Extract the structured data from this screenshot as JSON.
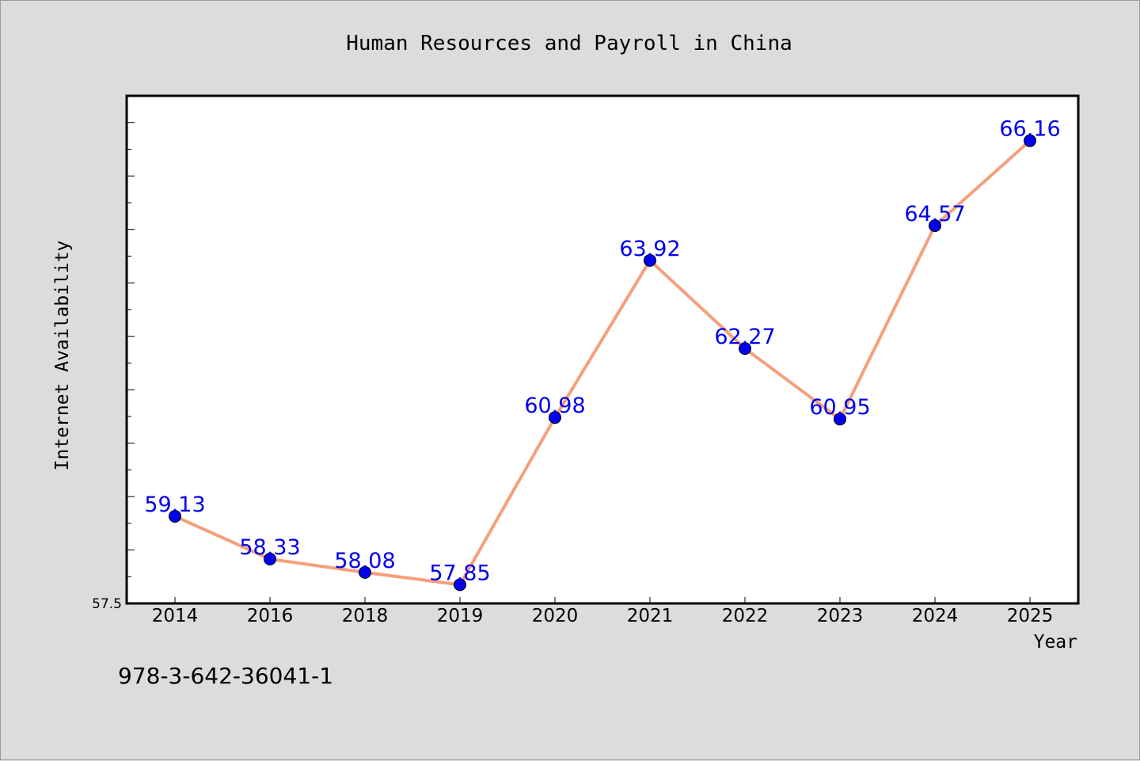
{
  "chart_data": {
    "type": "line",
    "title": "Human Resources and Payroll in China",
    "xlabel": "Year",
    "ylabel": "Internet Availability",
    "categories": [
      "2014",
      "2016",
      "2018",
      "2019",
      "2020",
      "2021",
      "2022",
      "2023",
      "2024",
      "2025"
    ],
    "series": [
      {
        "values": [
          59.13,
          58.33,
          58.08,
          57.85,
          60.98,
          63.92,
          62.27,
          60.95,
          64.57,
          66.16
        ]
      }
    ],
    "data_labels": [
      "59.13",
      "58.33",
      "58.08",
      "57.85",
      "60.98",
      "63.92",
      "62.27",
      "60.95",
      "64.57",
      "66.16"
    ],
    "ylim": [
      57.5,
      67.0
    ],
    "yticks_labeled": [
      "57.5"
    ],
    "grid": false,
    "line_color": "#f4a07c",
    "marker_color": "#0000ee",
    "label_color": "#0000ee"
  },
  "footer": {
    "code": "978-3-642-36041-1"
  }
}
